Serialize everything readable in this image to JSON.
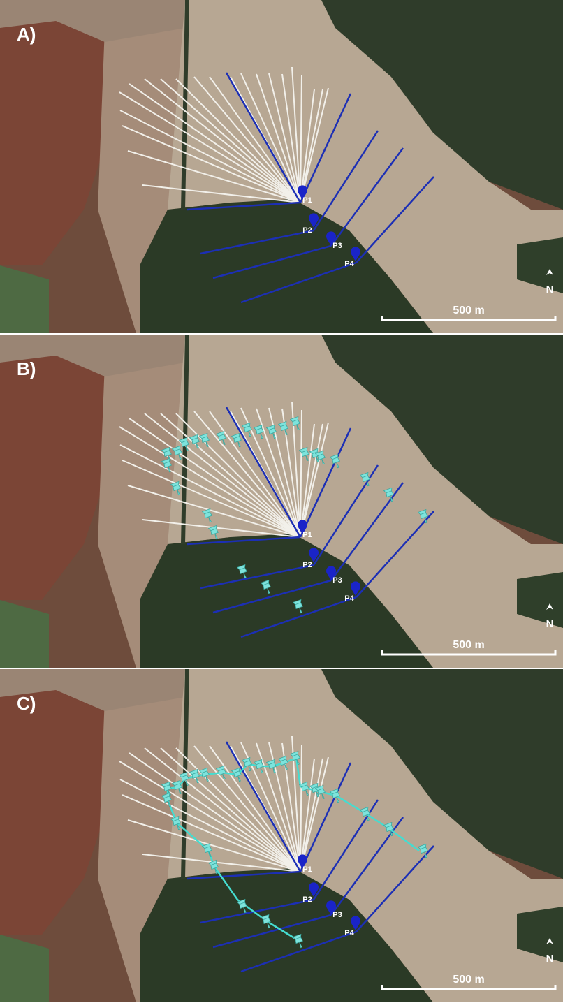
{
  "panels": [
    {
      "label": "A)",
      "points": [
        "P1",
        "P2",
        "P3",
        "P4"
      ],
      "north": "N",
      "scale": "500 m"
    },
    {
      "label": "B)",
      "points": [
        "P1",
        "P2",
        "P3",
        "P4"
      ],
      "north": "N",
      "scale": "500 m"
    },
    {
      "label": "C)",
      "points": [
        "P1",
        "P2",
        "P3",
        "P4"
      ],
      "north": "N",
      "scale": "500 m"
    }
  ]
}
